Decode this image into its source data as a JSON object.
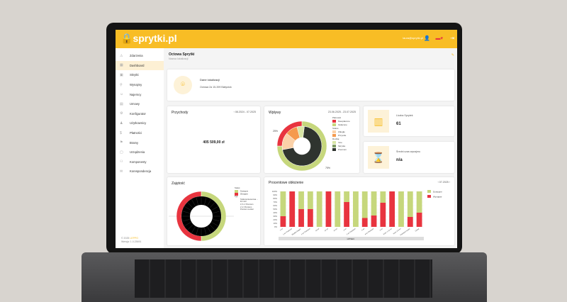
{
  "header": {
    "logo": "sprytki.pl",
    "user_email": "laura@sprytki.pl"
  },
  "sidebar": {
    "items": [
      {
        "label": "Zdarzenia"
      },
      {
        "label": "Dashboard",
        "active": true
      },
      {
        "label": "Skrytki"
      },
      {
        "label": "Wynajmy"
      },
      {
        "label": "Najemcy"
      },
      {
        "label": "Umowy"
      },
      {
        "label": "Konfigurator"
      },
      {
        "label": "Użytkownicy"
      },
      {
        "label": "Płatności"
      },
      {
        "label": "Bramy"
      },
      {
        "label": "Urządzenia"
      },
      {
        "label": "Komponenty"
      },
      {
        "label": "Korespondencja"
      }
    ],
    "footer_copy": "© 2025",
    "footer_brand": "LEPPO",
    "footer_version": "Wersja: 1.0.23691"
  },
  "page": {
    "title": "Octowa Sprytki",
    "subtitle": "Nazwa lokalizacji"
  },
  "location": {
    "heading": "Dane lokalizacji",
    "address": "Octowa 2a 15-399 Białystok"
  },
  "revenue": {
    "title": "Przychody",
    "range": "08.2024 - 07.2025",
    "value": "405 509,00 zł"
  },
  "inflows": {
    "title": "Wpływy",
    "range": "23.06.2025 - 23.07.2025",
    "pct_unpaid": "25%",
    "pct_paid": "75%",
    "legend": {
      "payments_label": "Płatności",
      "payments": [
        "Nieopłacone",
        "Opłacone"
      ],
      "status_label": "Status",
      "status": [
        "Zaległe",
        "Przyszłe"
      ],
      "type_label": "Rodzaj",
      "types": [
        "Inne",
        "Skrytka",
        "Premium"
      ]
    }
  },
  "stats": [
    {
      "label": "Liczba Sprytek",
      "value": "61"
    },
    {
      "label": "Średni czas wynajmu",
      "value": "n/a"
    }
  ],
  "occupancy": {
    "title": "Zajętość",
    "status_label": "Status:",
    "statuses": [
      "Dostępne",
      "Wynajęte"
    ],
    "type_label": "Typ:",
    "types": [
      "Szafa kontenerowa ... M II 2/2",
      "1,5 m³ Premium",
      "2 m³ Premium",
      "Premium Locker"
    ]
  },
  "colors": {
    "yellow": "#f8bd25",
    "red": "#e8343f",
    "green": "#c6d77c",
    "dark": "#2f342f"
  },
  "chart_data": {
    "type": "bar",
    "title": "Procentowe obłożenie",
    "period": "07.2025",
    "group_label": "LIPSEC",
    "categories": [
      "1 m³",
      "1 m³ Premium",
      "Skrytka bagaż.",
      "1 m³ Premium",
      "10 m³",
      "12 m³",
      "13 m³",
      "2 m³",
      "2 m³ Premium",
      "4 m³",
      "4 m³ Premium",
      "6 m³",
      "Kont. 1-12 m³",
      "Kont. 6-8 m³",
      "Premium locker",
      "Garaż"
    ],
    "series": [
      {
        "name": "Wynajęte",
        "values": [
          30,
          100,
          50,
          50,
          0,
          100,
          0,
          70,
          0,
          25,
          32,
          68,
          100,
          0,
          28,
          40
        ]
      },
      {
        "name": "Dostępne",
        "values": [
          70,
          0,
          50,
          50,
          100,
          0,
          100,
          30,
          100,
          75,
          68,
          32,
          0,
          100,
          72,
          60
        ]
      }
    ],
    "yticks": [
      "0%",
      "10%",
      "20%",
      "30%",
      "40%",
      "50%",
      "60%",
      "70%",
      "80%",
      "90%",
      "100%"
    ],
    "ylim": [
      0,
      100
    ],
    "legend": [
      "Dostępne",
      "Wynajęte"
    ]
  }
}
